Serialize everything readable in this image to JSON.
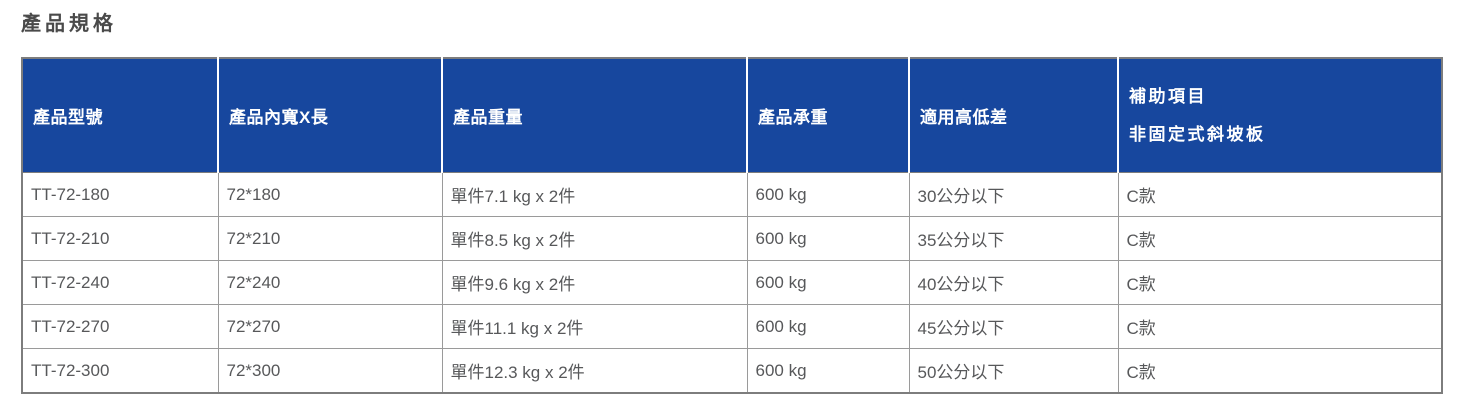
{
  "page": {
    "title": "產品規格"
  },
  "table": {
    "columns": [
      {
        "label": "產品型號"
      },
      {
        "label": "產品內寬X長"
      },
      {
        "label": "產品重量"
      },
      {
        "label": "產品承重"
      },
      {
        "label": "適用高低差"
      },
      {
        "label": "補助項目",
        "label2": "非固定式斜坡板"
      }
    ],
    "rows": [
      [
        "TT-72-180",
        "72*180",
        "單件7.1 kg x 2件",
        "600 kg",
        "30公分以下",
        "C款"
      ],
      [
        "TT-72-210",
        "72*210",
        "單件8.5 kg x 2件",
        "600 kg",
        "35公分以下",
        "C款"
      ],
      [
        "TT-72-240",
        "72*240",
        "單件9.6 kg x 2件",
        "600 kg",
        "40公分以下",
        "C款"
      ],
      [
        "TT-72-270",
        "72*270",
        "單件11.1 kg x 2件",
        "600 kg",
        "45公分以下",
        "C款"
      ],
      [
        "TT-72-300",
        "72*300",
        "單件12.3 kg x 2件",
        "600 kg",
        "50公分以下",
        "C款"
      ]
    ]
  },
  "colors": {
    "header_bg": "#17479e",
    "header_text": "#ffffff",
    "body_text": "#57585a",
    "inner_border": "#9a9a9a",
    "outer_border": "#7d7d7d",
    "title_text": "#4a4a4a"
  }
}
